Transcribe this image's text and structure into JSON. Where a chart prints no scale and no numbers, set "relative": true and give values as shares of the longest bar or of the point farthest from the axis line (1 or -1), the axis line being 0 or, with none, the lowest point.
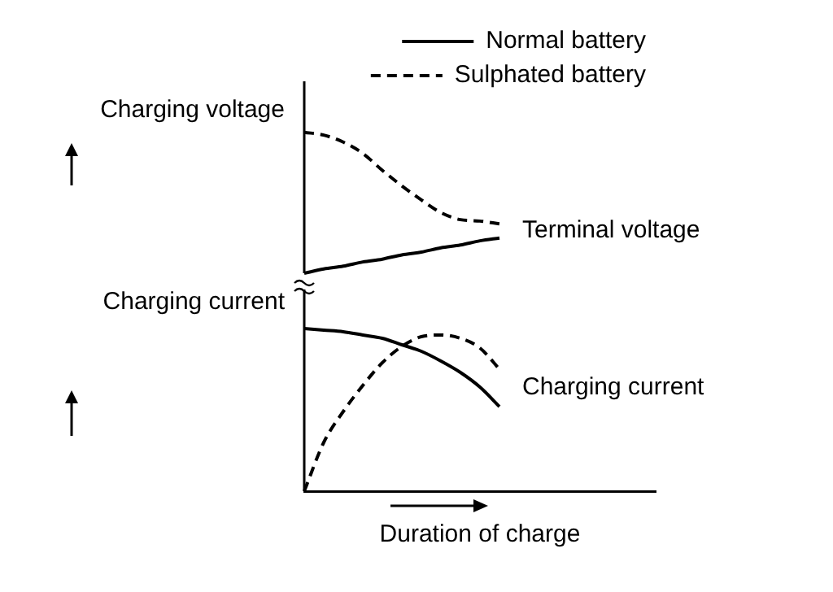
{
  "chart_data": [
    {
      "type": "line",
      "ylabel": "Charging voltage",
      "relative": true,
      "legend": "top right",
      "tick_labels": false,
      "marker": "none",
      "categories": [
        null,
        null,
        null,
        null,
        null,
        null,
        null,
        null,
        null,
        null,
        null,
        null,
        null,
        null,
        null,
        null,
        null,
        null,
        null
      ],
      "series": [
        {
          "name": "Normal battery",
          "color": "#000000",
          "line_style": "solid",
          "values": [
            0,
            0.03,
            0.05,
            0.08,
            0.1,
            0.13,
            0.15,
            0.18,
            0.2,
            0.23,
            0.25,
            null,
            null,
            null,
            null,
            null,
            null,
            null,
            null
          ]
        },
        {
          "name": "Sulphated battery",
          "color": "#000000",
          "line_style": "dashed",
          "values": [
            1,
            0.98,
            0.93,
            0.85,
            0.73,
            0.62,
            0.52,
            0.43,
            0.38,
            0.37,
            0.35,
            null,
            null,
            null,
            null,
            null,
            null,
            null,
            null
          ]
        }
      ],
      "annotations": [
        "Terminal voltage"
      ]
    },
    {
      "type": "line",
      "ylabel": "Charging current",
      "xlabel": "Duration of charge",
      "relative": true,
      "tick_labels": false,
      "marker": "none",
      "categories": [
        null,
        null,
        null,
        null,
        null,
        null,
        null,
        null,
        null,
        null,
        null,
        null,
        null,
        null,
        null,
        null,
        null,
        null,
        null
      ],
      "series": [
        {
          "color": "#000000",
          "line_style": "solid",
          "values": [
            1,
            0.99,
            0.98,
            0.96,
            0.94,
            0.9,
            0.86,
            0.8,
            0.73,
            0.64,
            0.52,
            null,
            null,
            null,
            null,
            null,
            null,
            null,
            null
          ]
        },
        {
          "color": "#000000",
          "line_style": "dashed",
          "values": [
            0,
            0.3,
            0.49,
            0.65,
            0.79,
            0.89,
            0.95,
            0.96,
            0.94,
            0.88,
            0.75,
            null,
            null,
            null,
            null,
            null,
            null,
            null,
            null
          ]
        }
      ],
      "annotations": [
        "Charging current"
      ]
    }
  ]
}
